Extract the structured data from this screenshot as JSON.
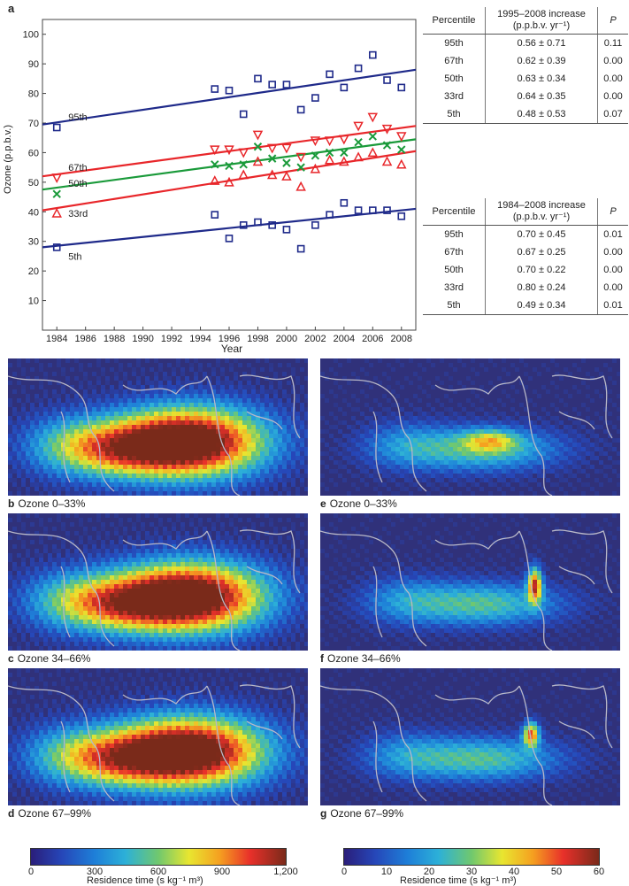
{
  "panel_letters": {
    "a": "a",
    "b": "b",
    "c": "c",
    "d": "d",
    "e": "e",
    "f": "f",
    "g": "g"
  },
  "chart_data": {
    "type": "scatter",
    "xlabel": "Year",
    "ylabel": "Ozone (p.p.b.v.)",
    "xlim": [
      1983,
      2009
    ],
    "ylim": [
      0,
      105
    ],
    "xticks": [
      1984,
      1986,
      1988,
      1990,
      1992,
      1994,
      1996,
      1998,
      2000,
      2002,
      2004,
      2006,
      2008
    ],
    "yticks": [
      10,
      20,
      30,
      40,
      50,
      60,
      70,
      80,
      90,
      100
    ],
    "grid": false,
    "series": [
      {
        "name": "95th",
        "marker": "square",
        "color": "#1f2a8a",
        "x": [
          1984,
          1995,
          1996,
          1997,
          1998,
          1999,
          2000,
          2001,
          2002,
          2003,
          2004,
          2005,
          2006,
          2007,
          2008
        ],
        "y": [
          68.5,
          81.5,
          81,
          73,
          85,
          83,
          83,
          74.5,
          78.5,
          86.5,
          82,
          88.5,
          93,
          84.5,
          82
        ],
        "trend": [
          69.5,
          88
        ]
      },
      {
        "name": "67th",
        "marker": "triangle-down",
        "color": "#e8262a",
        "x": [
          1984,
          1995,
          1996,
          1997,
          1998,
          1999,
          2000,
          2001,
          2002,
          2003,
          2004,
          2005,
          2006,
          2007,
          2008
        ],
        "y": [
          51.5,
          61,
          61,
          60,
          66,
          61.5,
          61.5,
          58.5,
          64,
          64,
          64.5,
          69,
          72,
          68,
          65.5
        ],
        "trend": [
          52,
          69
        ]
      },
      {
        "name": "50th",
        "marker": "x",
        "color": "#1a9a3a",
        "x": [
          1984,
          1995,
          1996,
          1997,
          1998,
          1999,
          2000,
          2001,
          2002,
          2003,
          2004,
          2005,
          2006,
          2007,
          2008
        ],
        "y": [
          46,
          56,
          55.5,
          56,
          62,
          58,
          56.5,
          55,
          59,
          60,
          60,
          63.5,
          65.5,
          62.5,
          61
        ],
        "trend": [
          47.5,
          64.5
        ]
      },
      {
        "name": "33rd",
        "marker": "triangle-up",
        "color": "#e8262a",
        "x": [
          1984,
          1995,
          1996,
          1997,
          1998,
          1999,
          2000,
          2001,
          2002,
          2003,
          2004,
          2005,
          2006,
          2007,
          2008
        ],
        "y": [
          39.5,
          50.5,
          50,
          52.5,
          57,
          52.5,
          52,
          48.5,
          54.5,
          57.5,
          57,
          58.5,
          60,
          57,
          56
        ],
        "trend": [
          40.5,
          60.5
        ]
      },
      {
        "name": "5th",
        "marker": "square",
        "color": "#1f2a8a",
        "x": [
          1984,
          1995,
          1996,
          1997,
          1998,
          1999,
          2000,
          2001,
          2002,
          2003,
          2004,
          2005,
          2006,
          2007,
          2008
        ],
        "y": [
          28,
          39,
          31,
          35.5,
          36.5,
          35.5,
          34,
          27.5,
          35.5,
          39,
          43,
          40.5,
          40.5,
          40.5,
          38.5
        ],
        "trend": [
          28,
          41
        ]
      }
    ]
  },
  "table1": {
    "headers": {
      "percentile": "Percentile",
      "increase": "1995–2008 increase",
      "units": "(p.p.b.v. yr⁻¹)",
      "p": "P"
    },
    "rows": [
      {
        "pct": "95th",
        "val": "0.56 ± 0.71",
        "p": "0.11"
      },
      {
        "pct": "67th",
        "val": "0.62 ± 0.39",
        "p": "0.00"
      },
      {
        "pct": "50th",
        "val": "0.63 ± 0.34",
        "p": "0.00"
      },
      {
        "pct": "33rd",
        "val": "0.64 ± 0.35",
        "p": "0.00"
      },
      {
        "pct": "5th",
        "val": "0.48 ± 0.53",
        "p": "0.07"
      }
    ]
  },
  "table2": {
    "headers": {
      "percentile": "Percentile",
      "increase": "1984–2008 increase",
      "units": "(p.p.b.v. yr⁻¹)",
      "p": "P"
    },
    "rows": [
      {
        "pct": "95th",
        "val": "0.70 ± 0.45",
        "p": "0.01"
      },
      {
        "pct": "67th",
        "val": "0.67 ± 0.25",
        "p": "0.00"
      },
      {
        "pct": "50th",
        "val": "0.70 ± 0.22",
        "p": "0.00"
      },
      {
        "pct": "33rd",
        "val": "0.80 ± 0.24",
        "p": "0.00"
      },
      {
        "pct": "5th",
        "val": "0.49 ± 0.34",
        "p": "0.01"
      }
    ]
  },
  "maps": {
    "b": {
      "letter": "b",
      "label": "Ozone 0–33%"
    },
    "c": {
      "letter": "c",
      "label": "Ozone 34–66%"
    },
    "d": {
      "letter": "d",
      "label": "Ozone 67–99%"
    },
    "e": {
      "letter": "e",
      "label": "Ozone 0–33%"
    },
    "f": {
      "letter": "f",
      "label": "Ozone 34–66%"
    },
    "g": {
      "letter": "g",
      "label": "Ozone 67–99%"
    }
  },
  "colorbar_left": {
    "ticks": [
      "0",
      "300",
      "600",
      "900",
      "1,200"
    ],
    "label": "Residence time (s kg⁻¹ m³)"
  },
  "colorbar_right": {
    "ticks": [
      "0",
      "10",
      "20",
      "30",
      "40",
      "50",
      "60"
    ],
    "label": "Residence time (s kg⁻¹ m³)"
  },
  "colors": {
    "navy": "#1f2a8a",
    "red": "#e8262a",
    "green": "#1a9a3a",
    "map_bg": "#30317a",
    "coast": "#b8b8c8"
  }
}
